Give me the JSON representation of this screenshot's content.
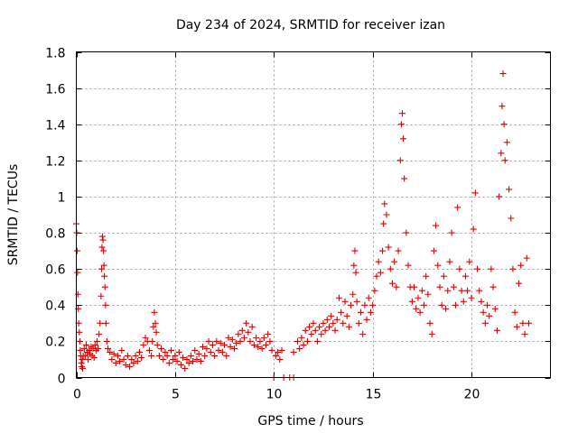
{
  "chart_data": {
    "type": "scatter",
    "title": "Day 234 of 2024, SRMTID for receiver izan",
    "xlabel": "GPS time / hours",
    "ylabel": "SRMTID / TECUs",
    "xlim": [
      0,
      24
    ],
    "ylim": [
      0,
      1.8
    ],
    "xticks": [
      0,
      5,
      10,
      15,
      20
    ],
    "xtick_labels": [
      "0",
      "5",
      "10",
      "15",
      "20"
    ],
    "yticks": [
      0,
      0.2,
      0.4,
      0.6,
      0.8,
      1.0,
      1.2,
      1.4,
      1.6,
      1.8
    ],
    "ytick_labels": [
      "0",
      "0.2",
      "0.4",
      "0.6",
      "0.8",
      "1",
      "1.2",
      "1.4",
      "1.6",
      "1.8"
    ],
    "grid": true,
    "marker": "+",
    "color": "#e00000",
    "series": [
      {
        "name": "SRMTID",
        "points": [
          [
            0.0,
            0.85
          ],
          [
            0.02,
            0.8
          ],
          [
            0.04,
            0.7
          ],
          [
            0.06,
            0.58
          ],
          [
            0.08,
            0.46
          ],
          [
            0.1,
            0.38
          ],
          [
            0.12,
            0.3
          ],
          [
            0.15,
            0.25
          ],
          [
            0.18,
            0.2
          ],
          [
            0.2,
            0.15
          ],
          [
            0.22,
            0.12
          ],
          [
            0.25,
            0.08
          ],
          [
            0.28,
            0.06
          ],
          [
            0.3,
            0.1
          ],
          [
            0.32,
            0.05
          ],
          [
            0.35,
            0.12
          ],
          [
            0.4,
            0.16
          ],
          [
            0.45,
            0.12
          ],
          [
            0.5,
            0.18
          ],
          [
            0.55,
            0.14
          ],
          [
            0.6,
            0.1
          ],
          [
            0.65,
            0.15
          ],
          [
            0.7,
            0.13
          ],
          [
            0.75,
            0.17
          ],
          [
            0.8,
            0.12
          ],
          [
            0.85,
            0.16
          ],
          [
            0.9,
            0.11
          ],
          [
            0.95,
            0.18
          ],
          [
            1.0,
            0.15
          ],
          [
            1.05,
            0.2
          ],
          [
            1.1,
            0.16
          ],
          [
            1.15,
            0.24
          ],
          [
            1.2,
            0.3
          ],
          [
            1.25,
            0.45
          ],
          [
            1.28,
            0.6
          ],
          [
            1.3,
            0.72
          ],
          [
            1.32,
            0.78
          ],
          [
            1.35,
            0.76
          ],
          [
            1.38,
            0.7
          ],
          [
            1.4,
            0.62
          ],
          [
            1.42,
            0.56
          ],
          [
            1.45,
            0.5
          ],
          [
            1.48,
            0.4
          ],
          [
            1.5,
            0.3
          ],
          [
            1.55,
            0.2
          ],
          [
            1.6,
            0.16
          ],
          [
            1.7,
            0.14
          ],
          [
            1.8,
            0.1
          ],
          [
            1.9,
            0.13
          ],
          [
            2.0,
            0.08
          ],
          [
            2.1,
            0.12
          ],
          [
            2.2,
            0.09
          ],
          [
            2.3,
            0.15
          ],
          [
            2.4,
            0.1
          ],
          [
            2.5,
            0.07
          ],
          [
            2.6,
            0.12
          ],
          [
            2.7,
            0.06
          ],
          [
            2.8,
            0.1
          ],
          [
            2.9,
            0.08
          ],
          [
            3.0,
            0.12
          ],
          [
            3.1,
            0.09
          ],
          [
            3.2,
            0.14
          ],
          [
            3.3,
            0.11
          ],
          [
            3.4,
            0.18
          ],
          [
            3.5,
            0.22
          ],
          [
            3.6,
            0.2
          ],
          [
            3.7,
            0.15
          ],
          [
            3.8,
            0.12
          ],
          [
            3.85,
            0.2
          ],
          [
            3.9,
            0.28
          ],
          [
            3.95,
            0.36
          ],
          [
            4.0,
            0.3
          ],
          [
            4.05,
            0.25
          ],
          [
            4.1,
            0.18
          ],
          [
            4.2,
            0.12
          ],
          [
            4.3,
            0.16
          ],
          [
            4.4,
            0.1
          ],
          [
            4.5,
            0.14
          ],
          [
            4.6,
            0.12
          ],
          [
            4.7,
            0.08
          ],
          [
            4.8,
            0.15
          ],
          [
            4.9,
            0.1
          ],
          [
            5.0,
            0.12
          ],
          [
            5.1,
            0.09
          ],
          [
            5.2,
            0.14
          ],
          [
            5.3,
            0.07
          ],
          [
            5.4,
            0.11
          ],
          [
            5.5,
            0.05
          ],
          [
            5.6,
            0.1
          ],
          [
            5.7,
            0.08
          ],
          [
            5.8,
            0.12
          ],
          [
            5.9,
            0.09
          ],
          [
            6.0,
            0.15
          ],
          [
            6.1,
            0.1
          ],
          [
            6.2,
            0.13
          ],
          [
            6.3,
            0.09
          ],
          [
            6.4,
            0.17
          ],
          [
            6.5,
            0.12
          ],
          [
            6.6,
            0.16
          ],
          [
            6.7,
            0.2
          ],
          [
            6.8,
            0.14
          ],
          [
            6.9,
            0.18
          ],
          [
            7.0,
            0.12
          ],
          [
            7.1,
            0.2
          ],
          [
            7.2,
            0.15
          ],
          [
            7.3,
            0.19
          ],
          [
            7.4,
            0.14
          ],
          [
            7.5,
            0.18
          ],
          [
            7.6,
            0.12
          ],
          [
            7.7,
            0.22
          ],
          [
            7.8,
            0.17
          ],
          [
            7.9,
            0.21
          ],
          [
            8.0,
            0.16
          ],
          [
            8.1,
            0.19
          ],
          [
            8.2,
            0.24
          ],
          [
            8.3,
            0.2
          ],
          [
            8.4,
            0.26
          ],
          [
            8.5,
            0.22
          ],
          [
            8.6,
            0.3
          ],
          [
            8.7,
            0.25
          ],
          [
            8.8,
            0.2
          ],
          [
            8.9,
            0.28
          ],
          [
            9.0,
            0.18
          ],
          [
            9.1,
            0.22
          ],
          [
            9.2,
            0.17
          ],
          [
            9.3,
            0.2
          ],
          [
            9.4,
            0.16
          ],
          [
            9.5,
            0.22
          ],
          [
            9.6,
            0.18
          ],
          [
            9.7,
            0.24
          ],
          [
            9.8,
            0.2
          ],
          [
            9.9,
            0.15
          ],
          [
            10.0,
            0.0
          ],
          [
            10.1,
            0.12
          ],
          [
            10.2,
            0.14
          ],
          [
            10.3,
            0.1
          ],
          [
            10.4,
            0.15
          ],
          [
            10.5,
            0.0
          ],
          [
            10.8,
            0.0
          ],
          [
            11.0,
            0.0
          ],
          [
            11.0,
            0.14
          ],
          [
            11.2,
            0.2
          ],
          [
            11.3,
            0.16
          ],
          [
            11.4,
            0.22
          ],
          [
            11.5,
            0.18
          ],
          [
            11.6,
            0.26
          ],
          [
            11.7,
            0.2
          ],
          [
            11.8,
            0.28
          ],
          [
            11.9,
            0.24
          ],
          [
            12.0,
            0.3
          ],
          [
            12.1,
            0.26
          ],
          [
            12.2,
            0.2
          ],
          [
            12.3,
            0.28
          ],
          [
            12.4,
            0.24
          ],
          [
            12.5,
            0.3
          ],
          [
            12.6,
            0.26
          ],
          [
            12.7,
            0.32
          ],
          [
            12.8,
            0.28
          ],
          [
            12.9,
            0.34
          ],
          [
            13.0,
            0.3
          ],
          [
            13.1,
            0.26
          ],
          [
            13.2,
            0.32
          ],
          [
            13.3,
            0.44
          ],
          [
            13.4,
            0.36
          ],
          [
            13.5,
            0.3
          ],
          [
            13.6,
            0.42
          ],
          [
            13.7,
            0.34
          ],
          [
            13.8,
            0.28
          ],
          [
            13.9,
            0.4
          ],
          [
            14.0,
            0.46
          ],
          [
            14.05,
            0.62
          ],
          [
            14.1,
            0.7
          ],
          [
            14.15,
            0.58
          ],
          [
            14.2,
            0.42
          ],
          [
            14.3,
            0.3
          ],
          [
            14.4,
            0.36
          ],
          [
            14.5,
            0.24
          ],
          [
            14.6,
            0.4
          ],
          [
            14.7,
            0.32
          ],
          [
            14.8,
            0.44
          ],
          [
            14.9,
            0.36
          ],
          [
            15.0,
            0.4
          ],
          [
            15.1,
            0.48
          ],
          [
            15.2,
            0.56
          ],
          [
            15.3,
            0.64
          ],
          [
            15.4,
            0.58
          ],
          [
            15.5,
            0.7
          ],
          [
            15.55,
            0.85
          ],
          [
            15.6,
            0.96
          ],
          [
            15.7,
            0.9
          ],
          [
            15.8,
            0.72
          ],
          [
            15.9,
            0.6
          ],
          [
            16.0,
            0.52
          ],
          [
            16.1,
            0.64
          ],
          [
            16.2,
            0.5
          ],
          [
            16.3,
            0.7
          ],
          [
            16.4,
            1.2
          ],
          [
            16.45,
            1.4
          ],
          [
            16.5,
            1.46
          ],
          [
            16.55,
            1.32
          ],
          [
            16.6,
            1.1
          ],
          [
            16.7,
            0.8
          ],
          [
            16.8,
            0.62
          ],
          [
            16.9,
            0.5
          ],
          [
            17.0,
            0.42
          ],
          [
            17.1,
            0.5
          ],
          [
            17.2,
            0.38
          ],
          [
            17.3,
            0.44
          ],
          [
            17.4,
            0.36
          ],
          [
            17.5,
            0.48
          ],
          [
            17.6,
            0.4
          ],
          [
            17.7,
            0.56
          ],
          [
            17.8,
            0.46
          ],
          [
            17.9,
            0.3
          ],
          [
            18.0,
            0.24
          ],
          [
            18.1,
            0.7
          ],
          [
            18.2,
            0.84
          ],
          [
            18.3,
            0.62
          ],
          [
            18.4,
            0.5
          ],
          [
            18.5,
            0.4
          ],
          [
            18.6,
            0.56
          ],
          [
            18.7,
            0.38
          ],
          [
            18.8,
            0.48
          ],
          [
            18.9,
            0.64
          ],
          [
            19.0,
            0.8
          ],
          [
            19.1,
            0.5
          ],
          [
            19.2,
            0.4
          ],
          [
            19.3,
            0.94
          ],
          [
            19.4,
            0.6
          ],
          [
            19.5,
            0.48
          ],
          [
            19.6,
            0.42
          ],
          [
            19.7,
            0.56
          ],
          [
            19.8,
            0.48
          ],
          [
            19.9,
            0.64
          ],
          [
            20.0,
            0.44
          ],
          [
            20.1,
            0.82
          ],
          [
            20.2,
            1.02
          ],
          [
            20.3,
            0.6
          ],
          [
            20.4,
            0.48
          ],
          [
            20.5,
            0.42
          ],
          [
            20.6,
            0.36
          ],
          [
            20.7,
            0.3
          ],
          [
            20.8,
            0.4
          ],
          [
            20.9,
            0.34
          ],
          [
            21.0,
            0.6
          ],
          [
            21.1,
            0.5
          ],
          [
            21.2,
            0.38
          ],
          [
            21.3,
            0.26
          ],
          [
            21.4,
            1.0
          ],
          [
            21.5,
            1.24
          ],
          [
            21.55,
            1.5
          ],
          [
            21.6,
            1.68
          ],
          [
            21.65,
            1.4
          ],
          [
            21.7,
            1.2
          ],
          [
            21.8,
            1.3
          ],
          [
            21.9,
            1.04
          ],
          [
            22.0,
            0.88
          ],
          [
            22.1,
            0.6
          ],
          [
            22.2,
            0.36
          ],
          [
            22.3,
            0.28
          ],
          [
            22.4,
            0.52
          ],
          [
            22.5,
            0.62
          ],
          [
            22.6,
            0.3
          ],
          [
            22.7,
            0.24
          ],
          [
            22.8,
            0.66
          ],
          [
            22.9,
            0.3
          ]
        ]
      }
    ]
  }
}
